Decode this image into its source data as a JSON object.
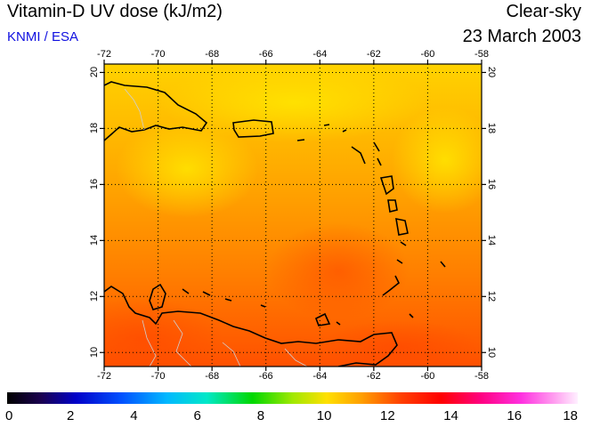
{
  "header": {
    "title": "Vitamin-D UV dose (kJ/m2)",
    "credit": "KNMI / ESA",
    "mode": "Clear-sky",
    "date": "23 March 2003"
  },
  "map": {
    "lon_ticks": [
      "-72",
      "-70",
      "-68",
      "-66",
      "-64",
      "-62",
      "-60",
      "-58"
    ],
    "lat_ticks": [
      "10",
      "12",
      "14",
      "16",
      "18",
      "20"
    ],
    "lon_range": [
      -72,
      -58
    ],
    "lat_range": [
      9.5,
      20.3
    ],
    "grid": "dotted",
    "field_colors": {
      "low": "#ff5a00",
      "mid": "#ff9a00",
      "high": "#ffe000"
    }
  },
  "colorbar": {
    "labels": [
      "0",
      "2",
      "4",
      "6",
      "8",
      "10",
      "12",
      "14",
      "16",
      "18"
    ],
    "range": [
      0,
      18
    ]
  }
}
